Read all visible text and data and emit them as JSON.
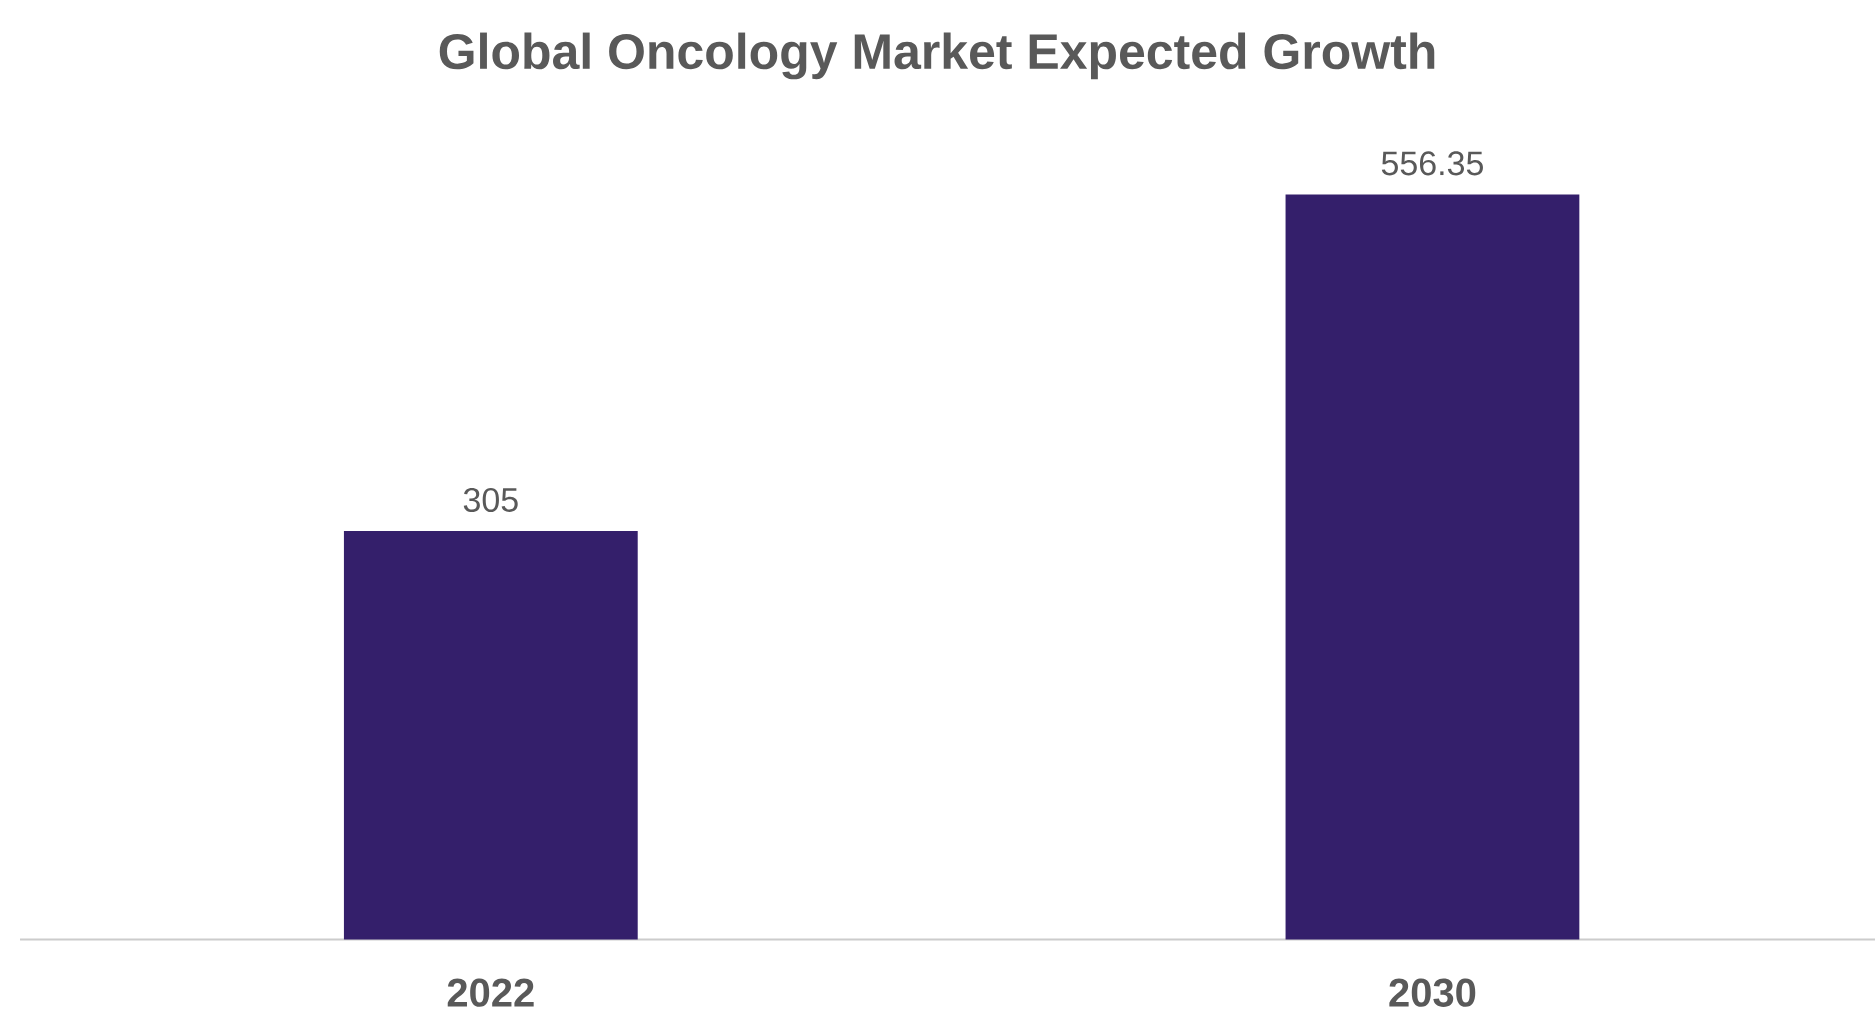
{
  "chart_data": {
    "type": "bar",
    "title": "Global Oncology Market Expected Growth",
    "categories": [
      "2022",
      "2030"
    ],
    "values": [
      305,
      556.35
    ],
    "color": "#341f6b",
    "data_labels": true
  }
}
